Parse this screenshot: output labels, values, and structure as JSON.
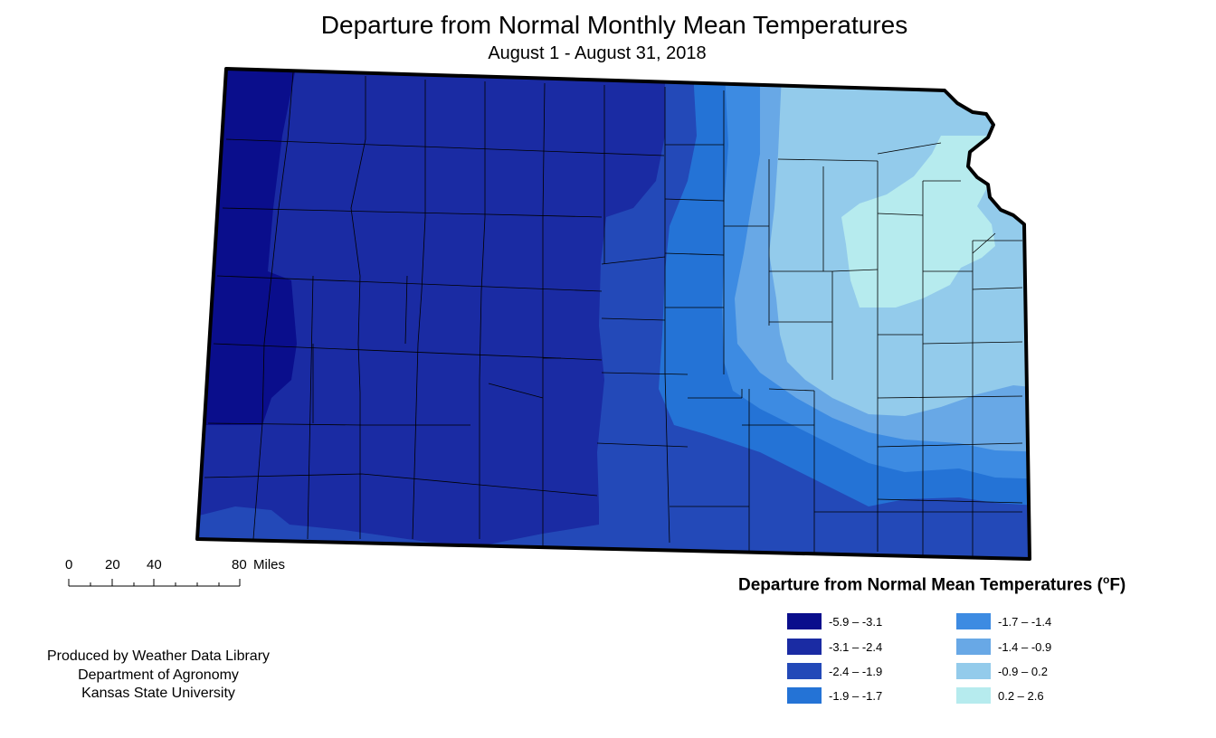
{
  "header": {
    "title": "Departure from Normal Monthly Mean Temperatures",
    "subtitle": "August 1 - August 31, 2018"
  },
  "map": {
    "state": "Kansas",
    "palette": {
      "c1": "#0a0e8c",
      "c2": "#1a2ba3",
      "c3": "#2349b8",
      "c4": "#2473d6",
      "c5": "#3d8be2",
      "c6": "#68a8e6",
      "c7": "#93cbeb",
      "c8": "#b6ebee"
    },
    "outline_color": "#000000"
  },
  "scale_bar": {
    "ticks": [
      "0",
      "20",
      "40",
      "80"
    ],
    "unit": "Miles"
  },
  "credits": {
    "line1": "Produced by Weather Data Library",
    "line2": "Department of Agronomy",
    "line3": "Kansas State University"
  },
  "legend": {
    "title": "Departure from Normal Mean Temperatures (",
    "title_degree": "o",
    "title_unit": "F)",
    "items": [
      {
        "label": "-5.9 – -3.1",
        "color": "#0a0e8c"
      },
      {
        "label": "-3.1 – -2.4",
        "color": "#1a2ba3"
      },
      {
        "label": "-2.4 – -1.9",
        "color": "#2349b8"
      },
      {
        "label": "-1.9 – -1.7",
        "color": "#2473d6"
      },
      {
        "label": "-1.7 – -1.4",
        "color": "#3d8be2"
      },
      {
        "label": "-1.4 – -0.9",
        "color": "#68a8e6"
      },
      {
        "label": "-0.9 – 0.2",
        "color": "#93cbeb"
      },
      {
        "label": "0.2 – 2.6",
        "color": "#b6ebee"
      }
    ]
  }
}
